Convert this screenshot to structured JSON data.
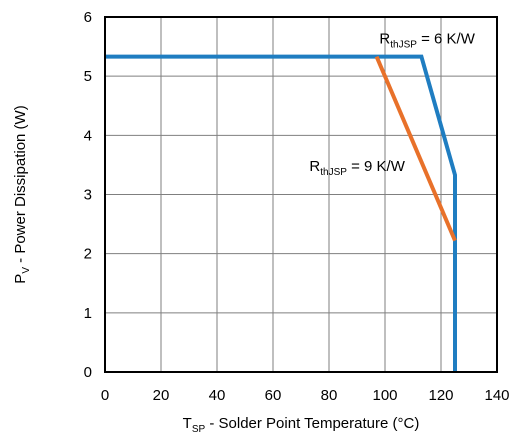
{
  "chart_data": {
    "type": "line",
    "xlabel": {
      "main": "T",
      "sub": "SP",
      "rest": " - Solder Point Temperature (°C)"
    },
    "ylabel": {
      "main": "P",
      "sub": "V",
      "rest": " - Power Dissipation (W)"
    },
    "xlim": [
      0,
      140
    ],
    "ylim": [
      0,
      6
    ],
    "xticks": [
      0,
      20,
      40,
      60,
      80,
      100,
      120,
      140
    ],
    "yticks": [
      0,
      1,
      2,
      3,
      4,
      5,
      6
    ],
    "grid": true,
    "series": [
      {
        "name": "RthJSP = 6 K/W",
        "color": "#1f7dc1",
        "points": [
          [
            0,
            5.33
          ],
          [
            113,
            5.33
          ],
          [
            125,
            3.33
          ],
          [
            125,
            0
          ]
        ]
      },
      {
        "name": "RthJSP = 9 K/W",
        "color": "#e8712a",
        "points": [
          [
            97,
            5.33
          ],
          [
            125,
            2.22
          ]
        ]
      }
    ],
    "annotations": [
      {
        "main": "R",
        "sub": "thJSP",
        "rest": " = 6 K/W",
        "x": 98,
        "y": 5.55,
        "series": 0
      },
      {
        "main": "R",
        "sub": "thJSP",
        "rest": " = 9 K/W",
        "x": 73,
        "y": 3.4,
        "series": 1
      }
    ]
  }
}
